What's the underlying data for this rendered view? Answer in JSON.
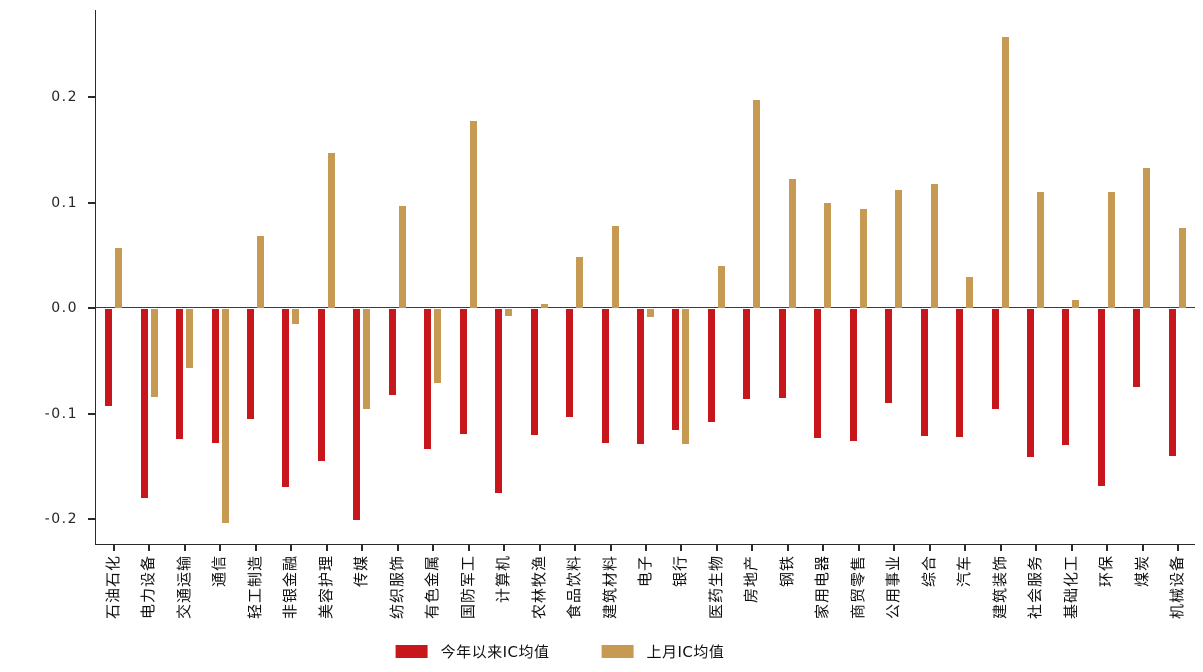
{
  "chart_data": {
    "type": "bar",
    "title": "",
    "xlabel": "",
    "ylabel": "",
    "grid": false,
    "legend_position": "bottom-center",
    "ylim": [
      -0.225,
      0.2825
    ],
    "yticks": [
      0.2,
      0.1,
      0.0,
      -0.1,
      -0.2
    ],
    "ytick_labels": [
      "0.2",
      "0.1",
      "0.0",
      "-0.1",
      "-0.2"
    ],
    "categories": [
      "石油石化",
      "电力设备",
      "交通运输",
      "通信",
      "轻工制造",
      "非银金融",
      "美容护理",
      "传媒",
      "纺织服饰",
      "有色金属",
      "国防军工",
      "计算机",
      "农林牧渔",
      "食品饮料",
      "建筑材料",
      "电子",
      "银行",
      "医药生物",
      "房地产",
      "钢铁",
      "家用电器",
      "商贸零售",
      "公用事业",
      "综合",
      "汽车",
      "建筑装饰",
      "社会服务",
      "基础化工",
      "环保",
      "煤炭",
      "机械设备"
    ],
    "series": [
      {
        "name": "今年以来IC均值",
        "color": "#C8161D",
        "values": [
          -0.092,
          -0.179,
          -0.123,
          -0.127,
          -0.104,
          -0.169,
          -0.144,
          -0.2,
          -0.081,
          -0.133,
          -0.118,
          -0.174,
          -0.119,
          -0.102,
          -0.127,
          -0.128,
          -0.115,
          -0.107,
          -0.085,
          -0.084,
          -0.122,
          -0.125,
          -0.089,
          -0.12,
          -0.121,
          -0.095,
          -0.14,
          -0.129,
          -0.168,
          -0.074,
          -0.139
        ]
      },
      {
        "name": "上月IC均值",
        "color": "#C79A54",
        "values": [
          0.057,
          -0.083,
          -0.056,
          -0.203,
          0.068,
          -0.014,
          0.147,
          -0.095,
          0.097,
          -0.07,
          0.177,
          -0.007,
          0.004,
          0.048,
          0.078,
          -0.008,
          -0.128,
          0.04,
          0.197,
          0.122,
          0.1,
          0.094,
          0.112,
          0.118,
          0.029,
          0.257,
          0.11,
          0.008,
          0.11,
          0.133,
          0.076
        ]
      }
    ],
    "colors": {
      "background": "#ffffff",
      "axis": "#2b2b2b",
      "zero_line": "#3c3c3c",
      "text": "#1a1a1a"
    }
  }
}
